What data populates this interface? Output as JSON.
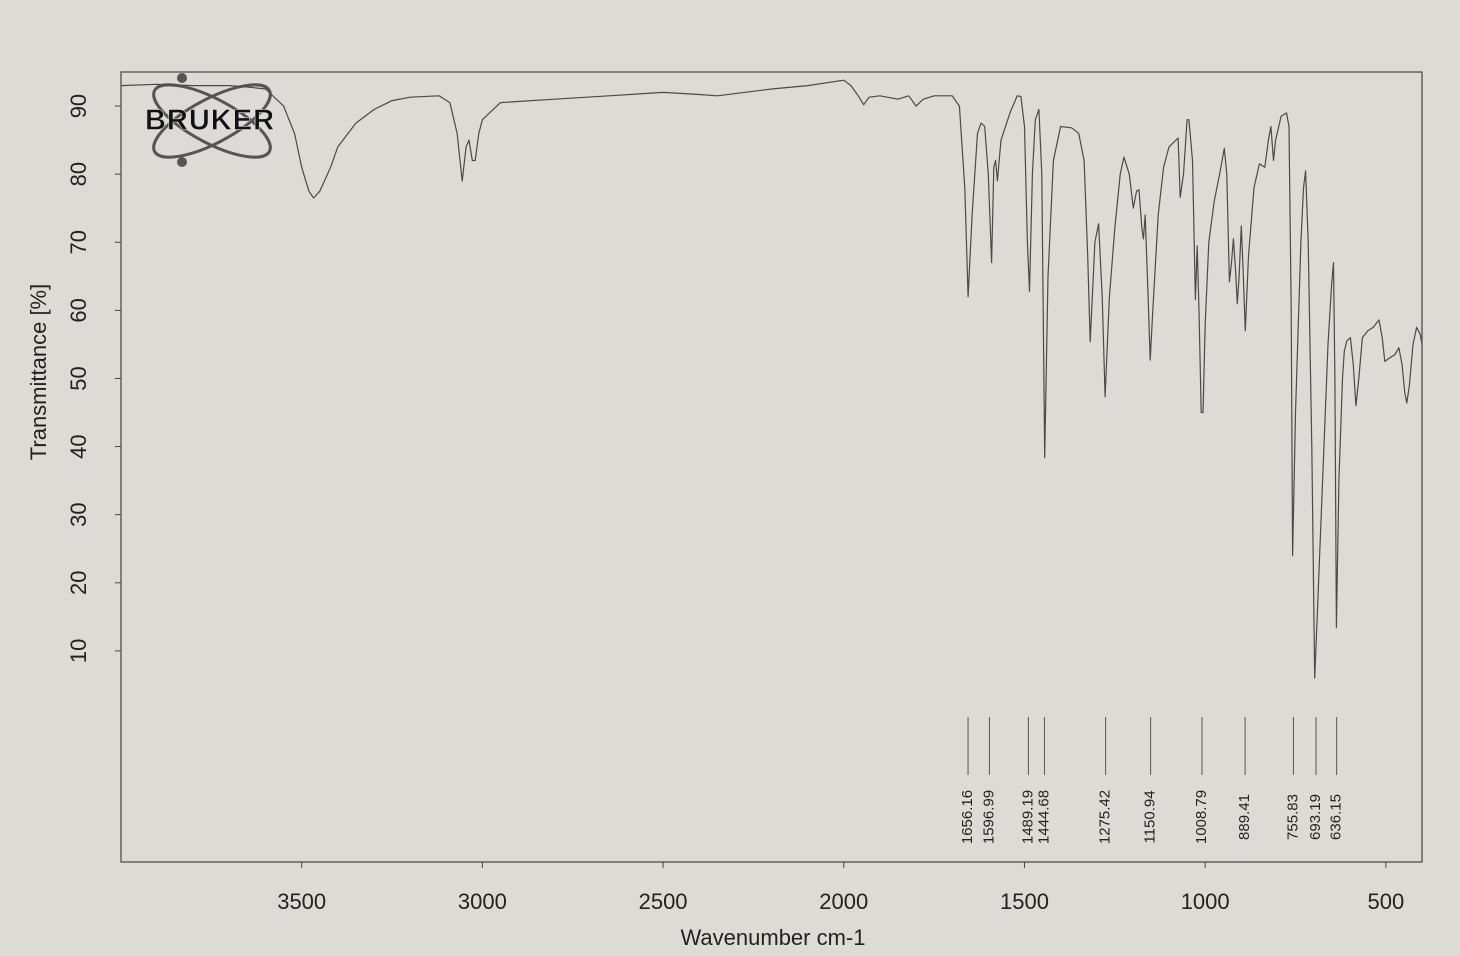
{
  "chart_data": {
    "type": "line",
    "logo": "BRUKER",
    "xlabel": "Wavenumber cm-1",
    "ylabel": "Transmittance [%]",
    "xlim": [
      4000,
      400
    ],
    "ylim": [
      -21,
      95
    ],
    "xticks": [
      3500,
      3000,
      2500,
      2000,
      1500,
      1000,
      500
    ],
    "yticks": [
      10,
      20,
      30,
      40,
      50,
      60,
      70,
      80,
      90
    ],
    "grid": false,
    "x": [
      4000,
      3900,
      3800,
      3700,
      3650,
      3600,
      3550,
      3520,
      3500,
      3480,
      3467,
      3450,
      3420,
      3400,
      3350,
      3300,
      3250,
      3200,
      3120,
      3090,
      3070,
      3056,
      3045,
      3037,
      3028,
      3020,
      3010,
      3000,
      2950,
      2800,
      2650,
      2500,
      2400,
      2350,
      2200,
      2100,
      2000,
      1980,
      1960,
      1945,
      1930,
      1900,
      1850,
      1820,
      1800,
      1780,
      1750,
      1700,
      1680,
      1665,
      1656,
      1645,
      1630,
      1620,
      1610,
      1600,
      1591,
      1585,
      1580,
      1575,
      1565,
      1540,
      1520,
      1510,
      1500,
      1492,
      1486,
      1478,
      1470,
      1460,
      1452,
      1444,
      1435,
      1420,
      1400,
      1370,
      1350,
      1335,
      1325,
      1318,
      1305,
      1295,
      1285,
      1277,
      1265,
      1250,
      1235,
      1225,
      1210,
      1199,
      1190,
      1183,
      1175,
      1171,
      1166,
      1158,
      1152,
      1145,
      1130,
      1115,
      1100,
      1075,
      1069,
      1060,
      1050,
      1045,
      1035,
      1027,
      1022,
      1017,
      1011,
      1006,
      1000,
      990,
      975,
      960,
      947,
      940,
      933,
      927,
      922,
      916,
      911,
      906,
      900,
      895,
      889,
      880,
      865,
      850,
      835,
      825,
      818,
      811,
      805,
      790,
      775,
      768,
      762,
      758,
      750,
      735,
      728,
      722,
      715,
      705,
      697,
      690,
      675,
      660,
      650,
      645,
      641,
      637,
      630,
      620,
      615,
      608,
      598,
      590,
      583,
      575,
      565,
      550,
      535,
      519,
      510,
      503,
      490,
      475,
      464,
      455,
      448,
      442,
      435,
      425,
      415,
      405,
      400
    ],
    "series": [
      {
        "color": "#4a4a4a",
        "values": [
          93,
          93.2,
          93,
          93,
          92.8,
          92.5,
          90,
          86,
          81,
          77.5,
          76.5,
          77.5,
          81,
          84,
          87.5,
          89.5,
          90.8,
          91.3,
          91.5,
          90.5,
          86,
          79,
          84,
          85,
          82,
          82,
          86,
          88,
          90.5,
          91,
          91.5,
          92,
          91.7,
          91.5,
          92.5,
          93,
          93.8,
          93,
          91.5,
          90.2,
          91.3,
          91.5,
          91,
          91.5,
          90,
          91,
          91.5,
          91.5,
          90,
          78,
          62,
          74,
          86,
          87.5,
          87,
          80,
          67,
          81,
          82,
          79,
          85,
          89,
          91.5,
          91.4,
          87,
          70,
          62.8,
          80,
          88,
          89.5,
          80,
          38.4,
          65,
          82,
          87,
          86.8,
          86,
          82,
          68,
          55.4,
          70,
          72.7,
          62,
          47.3,
          62,
          72,
          80,
          82.5,
          80,
          75,
          77.5,
          77.7,
          72,
          70.5,
          74,
          62,
          52.7,
          60,
          74,
          81,
          84,
          85.3,
          76.6,
          80,
          88,
          88,
          82,
          61.6,
          69.5,
          60,
          45,
          45,
          58,
          70,
          76,
          80,
          83.8,
          80,
          64.2,
          67,
          70.5,
          66,
          61,
          65,
          72.4,
          66,
          57,
          68,
          78,
          81.5,
          81,
          85,
          87,
          82,
          85,
          88.5,
          89,
          87,
          60,
          24,
          45,
          70,
          78,
          80.5,
          70,
          40,
          6,
          15,
          35,
          55,
          64,
          67,
          50,
          13.4,
          35,
          50,
          54,
          55.5,
          56,
          52,
          46,
          50,
          56,
          57,
          57.5,
          58.6,
          56,
          52.5,
          53,
          53.5,
          54.5,
          52,
          48,
          46.4,
          49,
          55,
          57.5,
          56.5,
          55
        ]
      }
    ],
    "peaks": [
      1656.16,
      1596.99,
      1489.19,
      1444.68,
      1275.42,
      1150.94,
      1008.79,
      889.41,
      755.83,
      693.19,
      636.15
    ]
  }
}
